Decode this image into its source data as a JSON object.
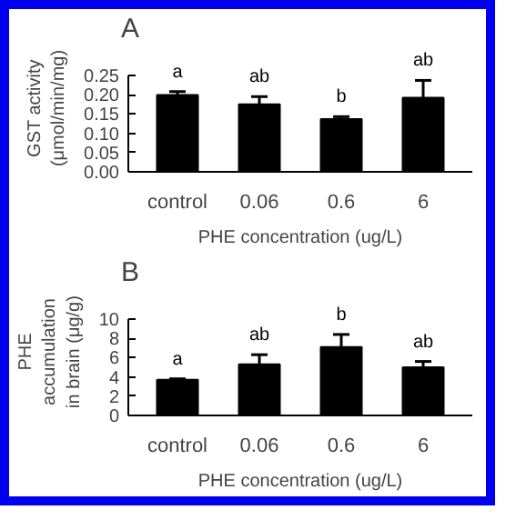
{
  "chart_data": [
    {
      "type": "bar",
      "title": "A",
      "xlabel": "PHE concentration (ug/L)",
      "ylabel": "GST activity\n(μmol/min/mg)",
      "categories": [
        "control",
        "0.06",
        "0.6",
        "6"
      ],
      "values": [
        0.199,
        0.175,
        0.137,
        0.192
      ],
      "errors": [
        0.009,
        0.02,
        0.006,
        0.045
      ],
      "color": "#000000",
      "ylim": [
        0,
        0.25
      ],
      "yticks": [
        {
          "value": 0,
          "label": "0.00"
        },
        {
          "value": 0.05,
          "label": "0.05"
        },
        {
          "value": 0.1,
          "label": "0.10"
        },
        {
          "value": 0.15,
          "label": "0.15"
        },
        {
          "value": 0.2,
          "label": "0.20"
        },
        {
          "value": 0.25,
          "label": "0.25"
        }
      ],
      "grid": false,
      "annotations": [
        "a",
        "ab",
        "b",
        "ab"
      ]
    },
    {
      "type": "bar",
      "title": "B",
      "xlabel": "PHE concentration (ug/L)",
      "ylabel": "PHE\naccumulation\nin brain (μg/g)",
      "categories": [
        "control",
        "0.06",
        "0.6",
        "6"
      ],
      "values": [
        3.7,
        5.3,
        7.1,
        5.0
      ],
      "errors": [
        0.1,
        1.0,
        1.3,
        0.6
      ],
      "color": "#000000",
      "ylim": [
        0,
        10
      ],
      "yticks": [
        0,
        2,
        4,
        6,
        8,
        10
      ],
      "grid": false,
      "annotations": [
        "a",
        "ab",
        "b",
        "ab"
      ]
    }
  ]
}
